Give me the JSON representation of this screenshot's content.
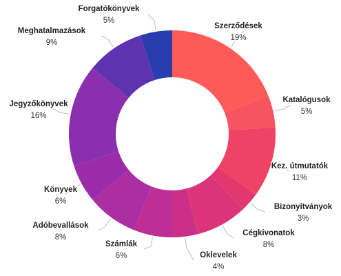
{
  "chart_data": {
    "type": "pie",
    "variant": "donut",
    "unit": "%",
    "slices": [
      {
        "label": "Szerződések",
        "value": 19,
        "color": "#fe5a58"
      },
      {
        "label": "Katalógusok",
        "value": 5,
        "color": "#f65460"
      },
      {
        "label": "Kez. útmutatók",
        "value": 11,
        "color": "#ee4365"
      },
      {
        "label": "Bizonyítványok",
        "value": 3,
        "color": "#e3386f"
      },
      {
        "label": "Cégkivonatok",
        "value": 8,
        "color": "#dc3478"
      },
      {
        "label": "Oklevelek",
        "value": 4,
        "color": "#cb2f87"
      },
      {
        "label": "Számlák",
        "value": 6,
        "color": "#be2e94"
      },
      {
        "label": "Adóbevallások",
        "value": 8,
        "color": "#ab2ea2"
      },
      {
        "label": "Könyvek",
        "value": 6,
        "color": "#9a2ca9"
      },
      {
        "label": "Jegyzőkönyvek",
        "value": 16,
        "color": "#8a2fae"
      },
      {
        "label": "Meghatalmazások",
        "value": 9,
        "color": "#5d33af"
      },
      {
        "label": "Forgatókönyvek",
        "value": 5,
        "color": "#2a3daf"
      }
    ],
    "start_angle_deg": 0,
    "direction": "clockwise",
    "legend": "none",
    "data_labels": "outside with leader lines"
  }
}
